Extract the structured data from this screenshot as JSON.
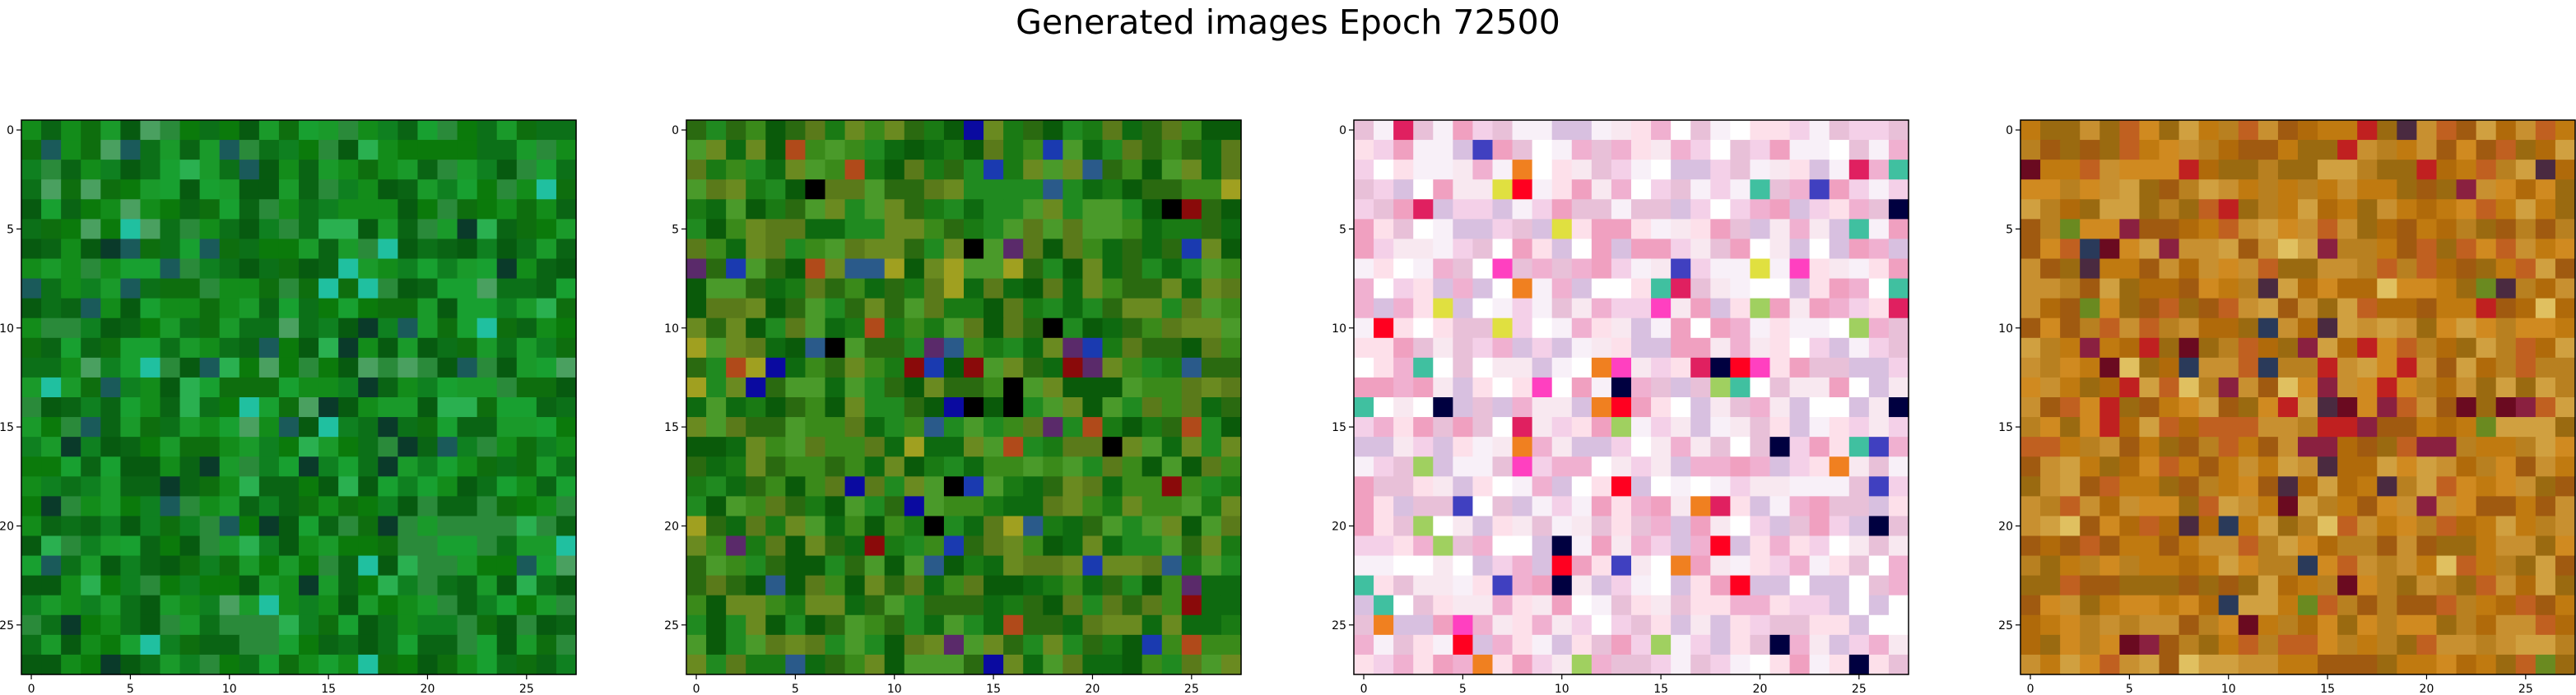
{
  "title": "Generated images Epoch 72500",
  "chart_data": [
    {
      "type": "heatmap",
      "grid": [
        28,
        28
      ],
      "xlim": [
        -0.5,
        27.5
      ],
      "ylim": [
        27.5,
        -0.5
      ],
      "xticks": [
        0,
        5,
        10,
        15,
        20,
        25
      ],
      "yticks": [
        0,
        5,
        10,
        15,
        20,
        25
      ],
      "palette": [
        "#0b7a0b",
        "#0e6e0e",
        "#138c1a",
        "#0a6414",
        "#1a9a2a",
        "#0f8020",
        "#2a8a3a",
        "#075a10",
        "#18a030",
        "#0c7018"
      ],
      "accents": [
        "#0a3a2a",
        "#2ab050",
        "#4aa060",
        "#1a5a5a",
        "#20c0a0"
      ]
    },
    {
      "type": "heatmap",
      "grid": [
        28,
        28
      ],
      "xlim": [
        -0.5,
        27.5
      ],
      "ylim": [
        27.5,
        -0.5
      ],
      "xticks": [
        0,
        5,
        10,
        15,
        20,
        25
      ],
      "yticks": [
        0,
        5,
        10,
        15,
        20,
        25
      ],
      "palette": [
        "#1a7a14",
        "#0e6a10",
        "#3a8a1a",
        "#5a7a1a",
        "#208a20",
        "#0a5a0a",
        "#4a9a2a",
        "#2a6a10",
        "#6a8a20"
      ],
      "accents": [
        "#0a0aa0",
        "#000000",
        "#8a0a0a",
        "#1a3ab0",
        "#2a5a8a",
        "#a0a020",
        "#b04a1a",
        "#5a2a6a"
      ]
    },
    {
      "type": "heatmap",
      "grid": [
        28,
        28
      ],
      "xlim": [
        -0.5,
        27.5
      ],
      "ylim": [
        27.5,
        -0.5
      ],
      "xticks": [
        0,
        5,
        10,
        15,
        20,
        25
      ],
      "yticks": [
        0,
        5,
        10,
        15,
        20,
        25
      ],
      "palette": [
        "#f8e8f0",
        "#fde0ea",
        "#f4d0e8",
        "#e8c0d8",
        "#f0b0d0",
        "#ffffff",
        "#f8f0f8",
        "#d8c0e0",
        "#f0a0c0"
      ],
      "accents": [
        "#ff0020",
        "#ff40c0",
        "#e02060",
        "#f08020",
        "#a0d060",
        "#4040c0",
        "#000040",
        "#40c0a0",
        "#e0e040"
      ]
    },
    {
      "type": "heatmap",
      "grid": [
        28,
        28
      ],
      "xlim": [
        -0.5,
        27.5
      ],
      "ylim": [
        27.5,
        -0.5
      ],
      "xticks": [
        0,
        5,
        10,
        15,
        20,
        25
      ],
      "yticks": [
        0,
        5,
        10,
        15,
        20,
        25
      ],
      "palette": [
        "#c07a10",
        "#d08a20",
        "#b06a0a",
        "#c89030",
        "#a05a10",
        "#d0a040",
        "#b88020",
        "#9a6a10",
        "#c06020"
      ],
      "accents": [
        "#6a0a20",
        "#2a3a5a",
        "#8a2040",
        "#6a8a20",
        "#e0c060",
        "#4a2a40",
        "#c02020"
      ]
    }
  ]
}
